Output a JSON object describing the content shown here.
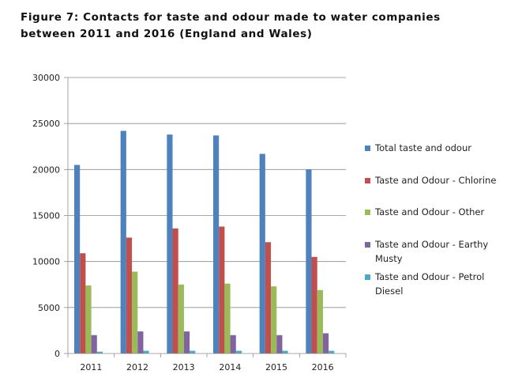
{
  "title_line1": "Figure 7: Contacts for taste and odour made to water companies",
  "title_line2": "between 2011 and 2016 (England and Wales)",
  "chart_data": {
    "type": "bar",
    "categories": [
      "2011",
      "2012",
      "2013",
      "2014",
      "2015",
      "2016"
    ],
    "series": [
      {
        "name": "Total taste and odour",
        "color": "#4f81bd",
        "values": [
          20500,
          24200,
          23800,
          23700,
          21700,
          20000
        ]
      },
      {
        "name": "Taste and Odour -  Chlorine",
        "color": "#c0504d",
        "values": [
          10900,
          12600,
          13600,
          13800,
          12100,
          10500
        ]
      },
      {
        "name": "Taste and Odour - Other",
        "color": "#9bbb59",
        "values": [
          7400,
          8900,
          7500,
          7600,
          7300,
          6900
        ]
      },
      {
        "name": "Taste and Odour - Earthy\nMusty",
        "color": "#8064a2",
        "values": [
          2000,
          2400,
          2400,
          2000,
          2000,
          2200
        ]
      },
      {
        "name": "Taste and Odour - Petrol\nDiesel",
        "color": "#4bacc6",
        "values": [
          200,
          300,
          300,
          300,
          300,
          300
        ]
      }
    ],
    "ylim": [
      0,
      30000
    ],
    "yticks": [
      0,
      5000,
      10000,
      15000,
      20000,
      25000,
      30000
    ],
    "grid": true,
    "legend_position": "right"
  }
}
